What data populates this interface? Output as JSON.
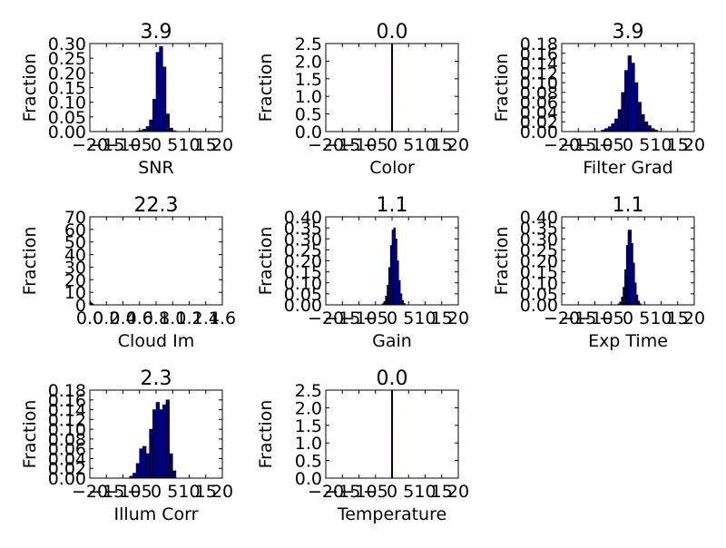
{
  "figure": {
    "background": "#ffffff",
    "bar_fill": "#00007f",
    "bar_stroke": "#000000"
  },
  "chart_data": [
    {
      "type": "bar",
      "title": "3.9",
      "xlabel": "SNR",
      "ylabel": "Fraction",
      "xlim": [
        -20,
        20
      ],
      "ylim": [
        0,
        0.3
      ],
      "xticks": [
        "−20",
        "−15",
        "−10",
        "−5",
        "0",
        "5",
        "10",
        "15",
        "20"
      ],
      "yticks": [
        "0.00",
        "0.05",
        "0.10",
        "0.15",
        "0.20",
        "0.25",
        "0.30"
      ],
      "bins": [
        {
          "x0": -6,
          "x1": -5,
          "value": 0.002
        },
        {
          "x0": -5,
          "x1": -4,
          "value": 0.004
        },
        {
          "x0": -4,
          "x1": -3,
          "value": 0.008
        },
        {
          "x0": -3,
          "x1": -2,
          "value": 0.017
        },
        {
          "x0": -2,
          "x1": -1,
          "value": 0.04
        },
        {
          "x0": -1,
          "x1": 0,
          "value": 0.11
        },
        {
          "x0": 0,
          "x1": 1,
          "value": 0.27
        },
        {
          "x0": 1,
          "x1": 2,
          "value": 0.29
        },
        {
          "x0": 2,
          "x1": 3,
          "value": 0.22
        },
        {
          "x0": 3,
          "x1": 4,
          "value": 0.06
        },
        {
          "x0": 4,
          "x1": 5,
          "value": 0.012
        },
        {
          "x0": 5,
          "x1": 6,
          "value": 0.003
        }
      ]
    },
    {
      "type": "bar",
      "title": "0.0",
      "xlabel": "Color",
      "ylabel": "Fraction",
      "xlim": [
        -20,
        20
      ],
      "ylim": [
        0,
        2.5
      ],
      "xticks": [
        "−20",
        "−15",
        "−10",
        "−5",
        "0",
        "5",
        "10",
        "15",
        "20"
      ],
      "yticks": [
        "0.0",
        "0.5",
        "1.0",
        "1.5",
        "2.0",
        "2.5"
      ],
      "bins": [
        {
          "x0": -0.2,
          "x1": 0.2,
          "value": 2.5
        }
      ]
    },
    {
      "type": "bar",
      "title": "3.9",
      "xlabel": "Filter Grad",
      "ylabel": "Fraction",
      "xlim": [
        -20,
        20
      ],
      "ylim": [
        0,
        0.18
      ],
      "xticks": [
        "−20",
        "−15",
        "−10",
        "−5",
        "0",
        "5",
        "10",
        "15",
        "20"
      ],
      "yticks": [
        "0.00",
        "0.02",
        "0.04",
        "0.06",
        "0.08",
        "0.10",
        "0.12",
        "0.14",
        "0.16",
        "0.18"
      ],
      "bins": [
        {
          "x0": -8,
          "x1": -7,
          "value": 0.003
        },
        {
          "x0": -7,
          "x1": -6,
          "value": 0.006
        },
        {
          "x0": -6,
          "x1": -5,
          "value": 0.01
        },
        {
          "x0": -5,
          "x1": -4,
          "value": 0.016
        },
        {
          "x0": -4,
          "x1": -3,
          "value": 0.026
        },
        {
          "x0": -3,
          "x1": -2,
          "value": 0.045
        },
        {
          "x0": -2,
          "x1": -1,
          "value": 0.08
        },
        {
          "x0": -1,
          "x1": 0,
          "value": 0.125
        },
        {
          "x0": 0,
          "x1": 1,
          "value": 0.155
        },
        {
          "x0": 1,
          "x1": 2,
          "value": 0.14
        },
        {
          "x0": 2,
          "x1": 3,
          "value": 0.1
        },
        {
          "x0": 3,
          "x1": 4,
          "value": 0.06
        },
        {
          "x0": 4,
          "x1": 5,
          "value": 0.035
        },
        {
          "x0": 5,
          "x1": 6,
          "value": 0.02
        },
        {
          "x0": 6,
          "x1": 7,
          "value": 0.012
        },
        {
          "x0": 7,
          "x1": 8,
          "value": 0.006
        },
        {
          "x0": 8,
          "x1": 9,
          "value": 0.003
        }
      ]
    },
    {
      "type": "bar",
      "title": "22.3",
      "xlabel": "Cloud Im",
      "ylabel": "Fraction",
      "xlim": [
        0,
        1.6
      ],
      "ylim": [
        0,
        70
      ],
      "xticks": [
        "0.0",
        "0.2",
        "0.4",
        "0.6",
        "0.8",
        "1.0",
        "1.2",
        "1.4",
        "1.6"
      ],
      "yticks": [
        "0",
        "10",
        "20",
        "30",
        "40",
        "50",
        "60",
        "70"
      ],
      "bins": [
        {
          "x0": 0,
          "x1": 0.01,
          "value": 3
        },
        {
          "x0": 0.01,
          "x1": 0.02,
          "value": 2
        },
        {
          "x0": 0.02,
          "x1": 0.03,
          "value": 1.3
        },
        {
          "x0": 0.03,
          "x1": 0.04,
          "value": 0.8
        },
        {
          "x0": 0.04,
          "x1": 0.05,
          "value": 0.4
        }
      ]
    },
    {
      "type": "bar",
      "title": "1.1",
      "xlabel": "Gain",
      "ylabel": "Fraction",
      "xlim": [
        -20,
        20
      ],
      "ylim": [
        0,
        0.4
      ],
      "xticks": [
        "−20",
        "−15",
        "−10",
        "−5",
        "0",
        "5",
        "10",
        "15",
        "20"
      ],
      "yticks": [
        "0.00",
        "0.05",
        "0.10",
        "0.15",
        "0.20",
        "0.25",
        "0.30",
        "0.35",
        "0.40"
      ],
      "bins": [
        {
          "x0": -3,
          "x1": -2.5,
          "value": 0.005
        },
        {
          "x0": -2.5,
          "x1": -2,
          "value": 0.015
        },
        {
          "x0": -2,
          "x1": -1.5,
          "value": 0.04
        },
        {
          "x0": -1.5,
          "x1": -1,
          "value": 0.09
        },
        {
          "x0": -1,
          "x1": -0.5,
          "value": 0.17
        },
        {
          "x0": -0.5,
          "x1": 0,
          "value": 0.27
        },
        {
          "x0": 0,
          "x1": 0.5,
          "value": 0.34
        },
        {
          "x0": 0.5,
          "x1": 1,
          "value": 0.35
        },
        {
          "x0": 1,
          "x1": 1.5,
          "value": 0.3
        },
        {
          "x0": 1.5,
          "x1": 2,
          "value": 0.2
        },
        {
          "x0": 2,
          "x1": 2.5,
          "value": 0.11
        },
        {
          "x0": 2.5,
          "x1": 3,
          "value": 0.05
        },
        {
          "x0": 3,
          "x1": 3.5,
          "value": 0.02
        },
        {
          "x0": 3.5,
          "x1": 4,
          "value": 0.006
        }
      ]
    },
    {
      "type": "bar",
      "title": "1.1",
      "xlabel": "Exp Time",
      "ylabel": "Fraction",
      "xlim": [
        -20,
        20
      ],
      "ylim": [
        0,
        0.4
      ],
      "xticks": [
        "−20",
        "−15",
        "−10",
        "−5",
        "0",
        "5",
        "10",
        "15",
        "20"
      ],
      "yticks": [
        "0.00",
        "0.05",
        "0.10",
        "0.15",
        "0.20",
        "0.25",
        "0.30",
        "0.35",
        "0.40"
      ],
      "bins": [
        {
          "x0": -3,
          "x1": -2.5,
          "value": 0.005
        },
        {
          "x0": -2.5,
          "x1": -2,
          "value": 0.013
        },
        {
          "x0": -2,
          "x1": -1.5,
          "value": 0.035
        },
        {
          "x0": -1.5,
          "x1": -1,
          "value": 0.08
        },
        {
          "x0": -1,
          "x1": -0.5,
          "value": 0.16
        },
        {
          "x0": -0.5,
          "x1": 0,
          "value": 0.27
        },
        {
          "x0": 0,
          "x1": 0.5,
          "value": 0.34
        },
        {
          "x0": 0.5,
          "x1": 1,
          "value": 0.34
        },
        {
          "x0": 1,
          "x1": 1.5,
          "value": 0.28
        },
        {
          "x0": 1.5,
          "x1": 2,
          "value": 0.19
        },
        {
          "x0": 2,
          "x1": 2.5,
          "value": 0.1
        },
        {
          "x0": 2.5,
          "x1": 3,
          "value": 0.045
        },
        {
          "x0": 3,
          "x1": 3.5,
          "value": 0.017
        },
        {
          "x0": 3.5,
          "x1": 4,
          "value": 0.005
        }
      ]
    },
    {
      "type": "bar",
      "title": "2.3",
      "xlabel": "Illum Corr",
      "ylabel": "Fraction",
      "xlim": [
        -20,
        20
      ],
      "ylim": [
        0,
        0.18
      ],
      "xticks": [
        "−20",
        "−15",
        "−10",
        "−5",
        "0",
        "5",
        "10",
        "15",
        "20"
      ],
      "yticks": [
        "0.00",
        "0.02",
        "0.04",
        "0.06",
        "0.08",
        "0.10",
        "0.12",
        "0.14",
        "0.16",
        "0.18"
      ],
      "bins": [
        {
          "x0": -8,
          "x1": -7,
          "value": 0.004
        },
        {
          "x0": -7,
          "x1": -6,
          "value": 0.01
        },
        {
          "x0": -6,
          "x1": -5,
          "value": 0.03
        },
        {
          "x0": -5,
          "x1": -4,
          "value": 0.06
        },
        {
          "x0": -4,
          "x1": -3,
          "value": 0.065
        },
        {
          "x0": -3,
          "x1": -2,
          "value": 0.05
        },
        {
          "x0": -2,
          "x1": -1,
          "value": 0.1
        },
        {
          "x0": -1,
          "x1": 0,
          "value": 0.14
        },
        {
          "x0": 0,
          "x1": 1,
          "value": 0.155
        },
        {
          "x0": 1,
          "x1": 2,
          "value": 0.14
        },
        {
          "x0": 2,
          "x1": 3,
          "value": 0.15
        },
        {
          "x0": 3,
          "x1": 4,
          "value": 0.16
        },
        {
          "x0": 4,
          "x1": 5,
          "value": 0.05
        },
        {
          "x0": 5,
          "x1": 6,
          "value": 0.015
        }
      ]
    },
    {
      "type": "bar",
      "title": "0.0",
      "xlabel": "Temperature",
      "ylabel": "Fraction",
      "xlim": [
        -20,
        20
      ],
      "ylim": [
        0,
        2.5
      ],
      "xticks": [
        "−20",
        "−15",
        "−10",
        "−5",
        "0",
        "5",
        "10",
        "15",
        "20"
      ],
      "yticks": [
        "0.0",
        "0.5",
        "1.0",
        "1.5",
        "2.0",
        "2.5"
      ],
      "bins": [
        {
          "x0": -0.2,
          "x1": 0.2,
          "value": 2.5
        }
      ]
    }
  ]
}
